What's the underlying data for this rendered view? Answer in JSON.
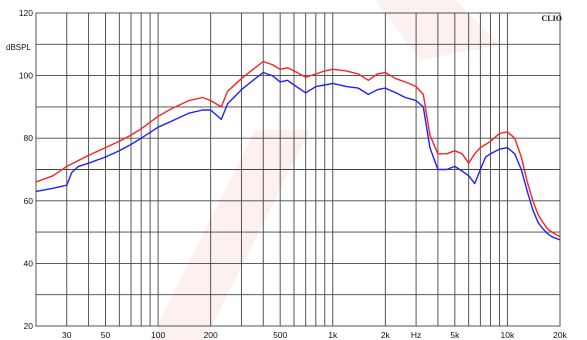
{
  "chart_data": {
    "type": "line",
    "brand": "CLIO",
    "ylabel": "dBSPL",
    "xlabel": "Hz",
    "xscale": "log",
    "xlim": [
      20,
      20000
    ],
    "ylim": [
      20,
      120
    ],
    "grid": true,
    "y_ticks": [
      {
        "value": 20,
        "label": "20"
      },
      {
        "value": 40,
        "label": "40"
      },
      {
        "value": 60,
        "label": "60"
      },
      {
        "value": 80,
        "label": "80"
      },
      {
        "value": 100,
        "label": "100"
      },
      {
        "value": 120,
        "label": "120"
      }
    ],
    "x_ticks": [
      {
        "value": 30,
        "label": "30"
      },
      {
        "value": 50,
        "label": "50"
      },
      {
        "value": 100,
        "label": "100"
      },
      {
        "value": 200,
        "label": "200"
      },
      {
        "value": 500,
        "label": "500"
      },
      {
        "value": 1000,
        "label": "1k"
      },
      {
        "value": 2000,
        "label": "2k"
      },
      {
        "value": 5000,
        "label": "5k"
      },
      {
        "value": 10000,
        "label": "10k"
      },
      {
        "value": 20000,
        "label": "20k"
      }
    ],
    "series": [
      {
        "color": "#ff2020",
        "x": [
          20,
          25,
          30,
          40,
          50,
          60,
          70,
          80,
          100,
          120,
          150,
          180,
          200,
          230,
          250,
          300,
          350,
          400,
          450,
          500,
          550,
          600,
          700,
          800,
          900,
          1000,
          1200,
          1400,
          1600,
          1800,
          2000,
          2300,
          2600,
          3000,
          3300,
          3600,
          4000,
          4500,
          5000,
          5500,
          6000,
          6500,
          7000,
          7500,
          8000,
          9000,
          10000,
          11000,
          12000,
          13000,
          14000,
          15000,
          16000,
          17000,
          18000,
          20000
        ],
        "y": [
          66,
          68,
          71,
          74.5,
          77,
          79,
          81,
          83,
          87,
          89.5,
          92,
          93,
          92,
          90,
          95,
          99,
          102,
          104.5,
          103.5,
          102,
          102.5,
          101.5,
          99.5,
          100.5,
          101.5,
          102,
          101.5,
          100.5,
          98.5,
          100.5,
          101,
          99,
          98,
          96.5,
          94,
          81,
          75,
          75,
          76,
          75,
          72,
          75,
          77,
          78,
          79,
          81.5,
          82,
          80,
          74,
          66,
          60,
          55.5,
          53,
          51,
          50,
          48.5
        ]
      },
      {
        "color": "#2020ff",
        "x": [
          20,
          25,
          30,
          32,
          35,
          40,
          50,
          60,
          70,
          80,
          100,
          120,
          150,
          180,
          200,
          230,
          250,
          300,
          350,
          400,
          450,
          500,
          550,
          600,
          700,
          800,
          900,
          1000,
          1200,
          1400,
          1600,
          1800,
          2000,
          2300,
          2600,
          3000,
          3300,
          3600,
          4000,
          4500,
          5000,
          5500,
          6000,
          6500,
          7000,
          7500,
          8000,
          9000,
          10000,
          11000,
          12000,
          13000,
          14000,
          15000,
          16000,
          17000,
          18000,
          20000
        ],
        "y": [
          63,
          64,
          65,
          69,
          71,
          72,
          74,
          76,
          78,
          80,
          83.5,
          85.5,
          88,
          89,
          89,
          86,
          91,
          95.5,
          98.5,
          101,
          100,
          98,
          98.5,
          97,
          94.5,
          96.5,
          97,
          97.5,
          96.5,
          96,
          94,
          95.5,
          96,
          94.5,
          93,
          92,
          90,
          77,
          70,
          70,
          71,
          69.5,
          68,
          65.5,
          70,
          74,
          75,
          76.5,
          77,
          75,
          70,
          63,
          57,
          53,
          51,
          49.5,
          48.5,
          47.5
        ]
      }
    ]
  }
}
